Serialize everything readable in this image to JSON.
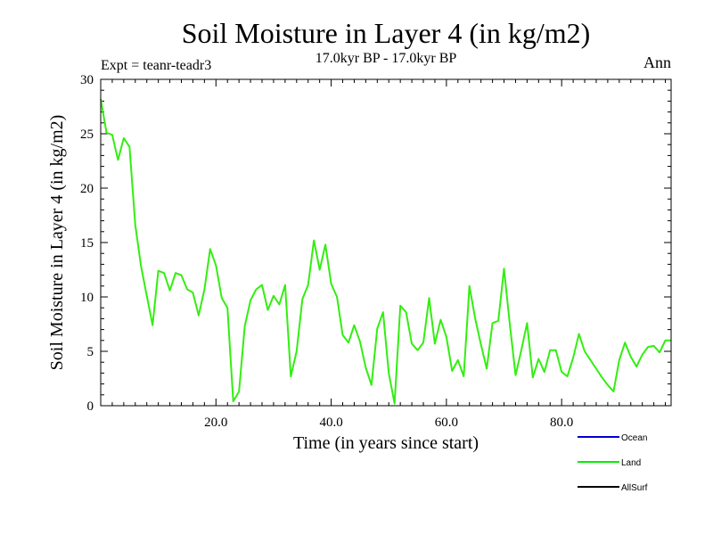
{
  "chart_data": {
    "type": "line",
    "title": "Soil Moisture in Layer 4 (in kg/m2)",
    "subtitle": "17.0kyr BP - 17.0kyr BP",
    "left_label": "Expt = teanr-teadr3",
    "right_label": "Ann",
    "xlabel": "Time (in years since start)",
    "ylabel": "Soil Moisture in Layer 4 (in kg/m2)",
    "xlim": [
      0,
      99
    ],
    "ylim": [
      0,
      30
    ],
    "x_ticks": [
      20,
      40,
      60,
      80
    ],
    "x_tick_labels": [
      "20.0",
      "40.0",
      "60.0",
      "80.0"
    ],
    "y_ticks": [
      0,
      5,
      10,
      15,
      20,
      25,
      30
    ],
    "y_tick_labels": [
      "0",
      "5",
      "10",
      "15",
      "20",
      "25",
      "30"
    ],
    "legend": [
      {
        "name": "Ocean",
        "color": "#0000cc"
      },
      {
        "name": "Land",
        "color": "#00ee00"
      },
      {
        "name": "AllSurf",
        "color": "#000000"
      }
    ],
    "series": [
      {
        "name": "Land",
        "color": "#33ee11",
        "x": [
          0,
          1,
          2,
          3,
          4,
          5,
          6,
          7,
          8,
          9,
          10,
          11,
          12,
          13,
          14,
          15,
          16,
          17,
          18,
          19,
          20,
          21,
          22,
          23,
          24,
          25,
          26,
          27,
          28,
          29,
          30,
          31,
          32,
          33,
          34,
          35,
          36,
          37,
          38,
          39,
          40,
          41,
          42,
          43,
          44,
          45,
          46,
          47,
          48,
          49,
          50,
          51,
          52,
          53,
          54,
          55,
          56,
          57,
          58,
          59,
          60,
          61,
          62,
          63,
          64,
          65,
          66,
          67,
          68,
          69,
          70,
          71,
          72,
          73,
          74,
          75,
          76,
          77,
          78,
          79,
          80,
          81,
          82,
          83,
          84,
          85,
          86,
          87,
          88,
          89,
          90,
          91,
          92,
          93,
          94,
          95,
          96,
          97,
          98,
          99
        ],
        "values": [
          28.2,
          25.1,
          24.9,
          22.6,
          24.6,
          23.8,
          16.6,
          12.8,
          10.1,
          7.4,
          12.4,
          12.2,
          10.6,
          12.2,
          12.0,
          10.7,
          10.4,
          8.3,
          10.7,
          14.4,
          12.9,
          9.9,
          9.0,
          0.4,
          1.3,
          7.3,
          9.7,
          10.7,
          11.1,
          8.8,
          10.1,
          9.3,
          11.1,
          2.7,
          5.0,
          9.8,
          11.1,
          15.2,
          12.5,
          14.8,
          11.2,
          10.0,
          6.5,
          5.8,
          7.4,
          5.9,
          3.5,
          1.9,
          7.1,
          8.6,
          3.0,
          0.2,
          9.2,
          8.6,
          5.7,
          5.1,
          5.8,
          9.9,
          5.7,
          7.9,
          6.3,
          3.2,
          4.2,
          2.7,
          11.0,
          8.0,
          5.6,
          3.4,
          7.6,
          7.8,
          12.6,
          7.5,
          2.8,
          5.1,
          7.6,
          2.6,
          4.3,
          3.1,
          5.1,
          5.1,
          3.1,
          2.7,
          4.4,
          6.6,
          5.0,
          4.2,
          3.4,
          2.6,
          1.9,
          1.3,
          4.2,
          5.8,
          4.5,
          3.6,
          4.7,
          5.4,
          5.5,
          4.9,
          6.0,
          6.0
        ]
      }
    ]
  }
}
